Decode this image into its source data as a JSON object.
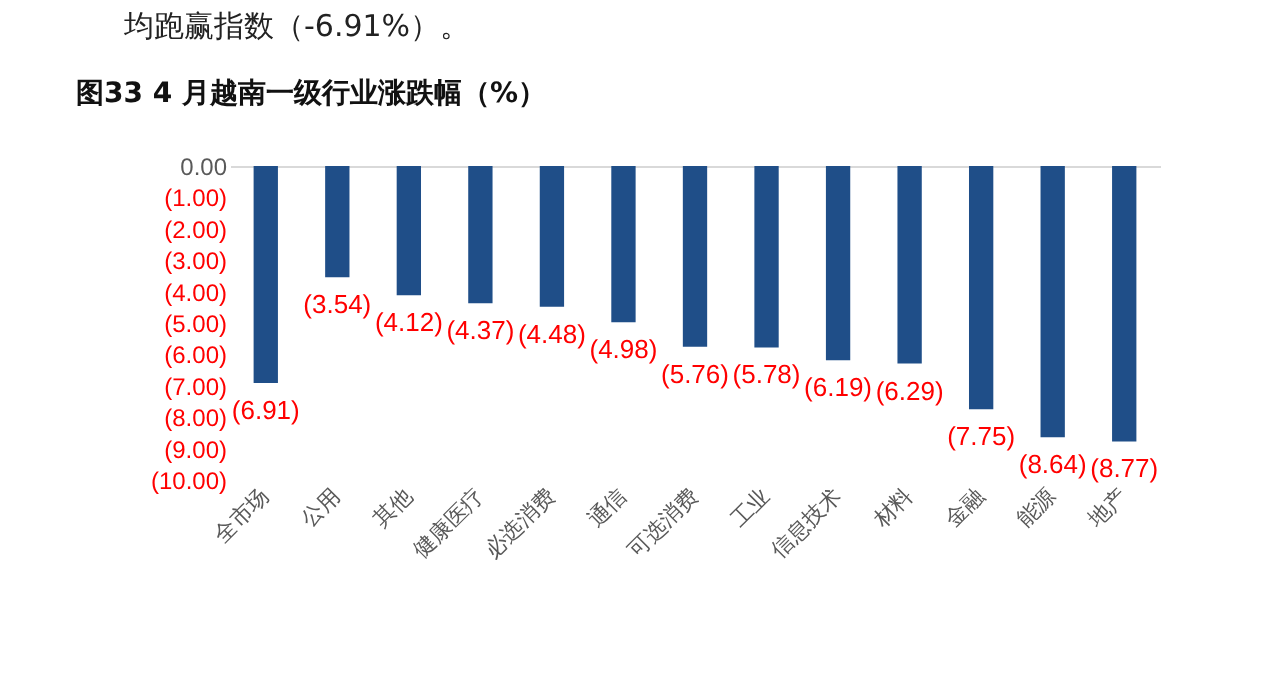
{
  "chart_data": {
    "type": "bar",
    "title": "图33 4 月越南一级行业涨跌幅（%）",
    "annotations": [
      "均跑赢指数（-6.91%）。"
    ],
    "categories": [
      "全市场",
      "公用",
      "其他",
      "健康医疗",
      "必选消费",
      "通信",
      "可选消费",
      "工业",
      "信息技术",
      "材料",
      "金融",
      "能源",
      "地产"
    ],
    "values": [
      -6.91,
      -3.54,
      -4.12,
      -4.37,
      -4.48,
      -4.98,
      -5.76,
      -5.78,
      -6.19,
      -6.29,
      -7.75,
      -8.64,
      -8.77
    ],
    "value_labels": [
      "(6.91)",
      "(3.54)",
      "(4.12)",
      "(4.37)",
      "(4.48)",
      "(4.98)",
      "(5.76)",
      "(5.78)",
      "(6.19)",
      "(6.29)",
      "(7.75)",
      "(8.64)",
      "(8.77)"
    ],
    "color": "#1f4e88",
    "ylim": [
      -10,
      0
    ],
    "yticks": [
      {
        "value": 0,
        "label": "0.00"
      },
      {
        "value": -1,
        "label": "(1.00)"
      },
      {
        "value": -2,
        "label": "(2.00)"
      },
      {
        "value": -3,
        "label": "(3.00)"
      },
      {
        "value": -4,
        "label": "(4.00)"
      },
      {
        "value": -5,
        "label": "(5.00)"
      },
      {
        "value": -6,
        "label": "(6.00)"
      },
      {
        "value": -7,
        "label": "(7.00)"
      },
      {
        "value": -8,
        "label": "(8.00)"
      },
      {
        "value": -9,
        "label": "(9.00)"
      },
      {
        "value": -10,
        "label": "(10.00)"
      }
    ],
    "grid": false
  }
}
